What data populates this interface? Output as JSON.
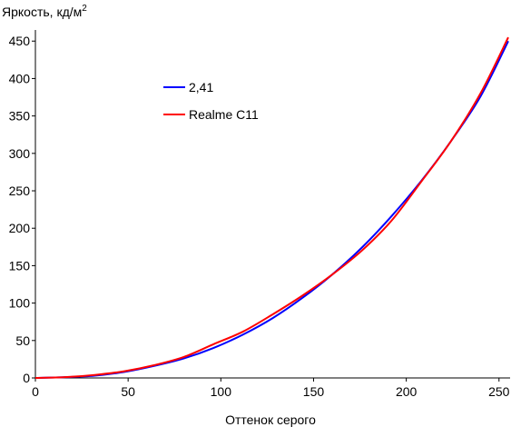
{
  "chart_data": {
    "type": "line",
    "title": "",
    "ylabel": "Яркость, кд/м",
    "ylabel_superscript": "2",
    "xlabel": "Оттенок серого",
    "xlim": [
      0,
      255
    ],
    "ylim": [
      0,
      460
    ],
    "xticks": [
      0,
      50,
      100,
      150,
      200,
      250
    ],
    "yticks": [
      0,
      50,
      100,
      150,
      200,
      250,
      300,
      350,
      400,
      450
    ],
    "grid": false,
    "legend_position": "upper-left inside plot",
    "series": [
      {
        "name": "2,41",
        "color": "#0000ff",
        "x": [
          0,
          16,
          32,
          48,
          64,
          80,
          96,
          112,
          128,
          144,
          160,
          176,
          192,
          208,
          224,
          240,
          255
        ],
        "y": [
          0,
          1,
          3,
          8,
          16,
          26,
          40,
          58,
          80,
          107,
          138,
          174,
          216,
          263,
          316,
          376,
          450
        ]
      },
      {
        "name": "Realme C11",
        "color": "#ff0000",
        "x": [
          0,
          16,
          32,
          48,
          64,
          80,
          96,
          112,
          128,
          144,
          160,
          176,
          192,
          208,
          224,
          240,
          255
        ],
        "y": [
          0,
          1,
          4,
          9,
          17,
          28,
          45,
          62,
          85,
          110,
          138,
          170,
          210,
          262,
          316,
          380,
          455
        ]
      }
    ]
  }
}
